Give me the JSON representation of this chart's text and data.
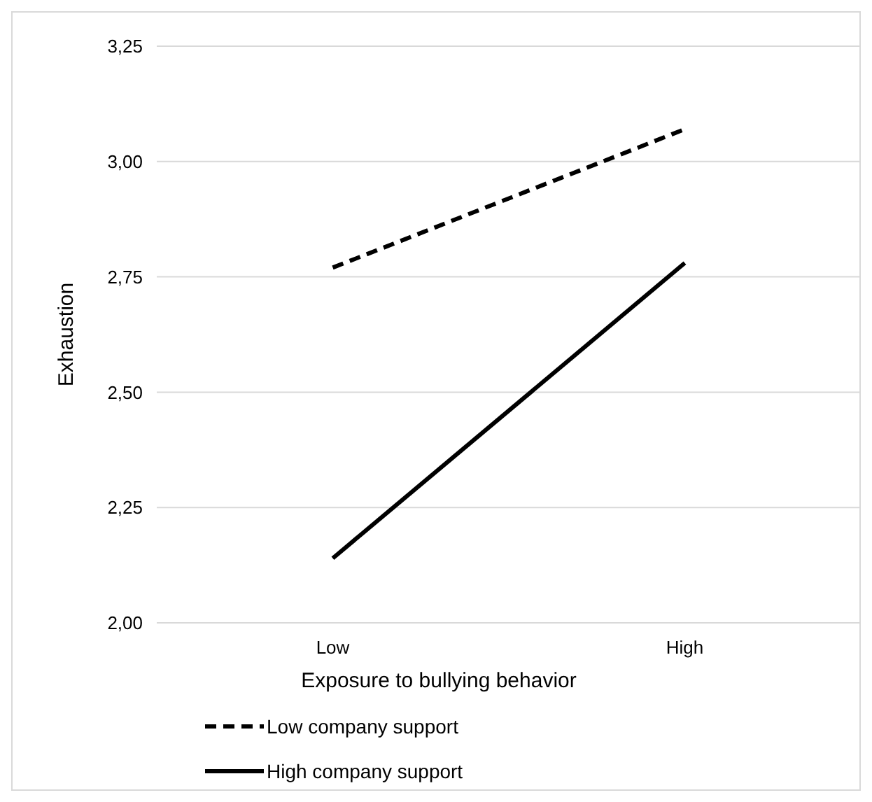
{
  "chart_data": {
    "type": "line",
    "xlabel": "Exposure to bullying behavior",
    "ylabel": "Exhaustion",
    "categories": [
      "Low",
      "High"
    ],
    "series": [
      {
        "name": "Low company support",
        "color": "#000000",
        "line_style": "dashed",
        "values": [
          2.77,
          3.07
        ]
      },
      {
        "name": "High company support",
        "color": "#000000",
        "line_style": "solid",
        "values": [
          2.14,
          2.78
        ]
      }
    ],
    "ylim": [
      2,
      3.25
    ],
    "yticks": [
      {
        "value": 2,
        "label": "2,00"
      },
      {
        "value": 2.25,
        "label": "2,25"
      },
      {
        "value": 2.5,
        "label": "2,50"
      },
      {
        "value": 2.75,
        "label": "2,75"
      },
      {
        "value": 3,
        "label": "3,00"
      },
      {
        "value": 3.25,
        "label": "3,25"
      }
    ],
    "grid": "y",
    "legend": "bottom",
    "marker": "none"
  }
}
